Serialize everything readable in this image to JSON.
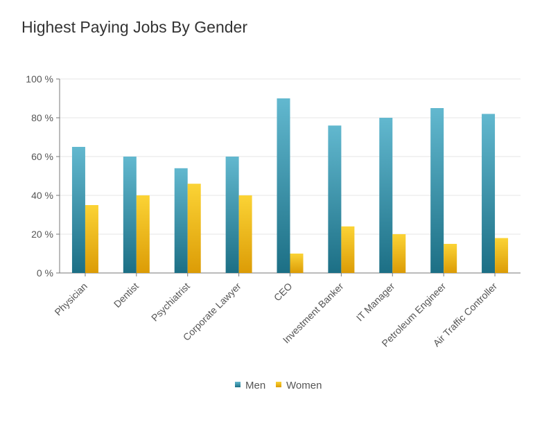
{
  "chart_data": {
    "type": "bar",
    "title": "Highest Paying Jobs By Gender",
    "xlabel": "",
    "ylabel": "",
    "ylim": [
      0,
      100
    ],
    "yticks": [
      0,
      20,
      40,
      60,
      80,
      100
    ],
    "ytick_labels": [
      "0 %",
      "20 %",
      "40 %",
      "60 %",
      "80 %",
      "100 %"
    ],
    "grid": true,
    "legend_position": "bottom",
    "categories": [
      "Physician",
      "Dentist",
      "Psychiatrist",
      "Corporate Lawyer",
      "CEO",
      "Investment Banker",
      "IT Manager",
      "Petroleum Engineer",
      "Air Traffic Controller"
    ],
    "series": [
      {
        "name": "Men",
        "values": [
          65,
          60,
          54,
          60,
          90,
          76,
          80,
          85,
          82
        ],
        "color_top": "#62b8cf",
        "color_bottom": "#1c6f85"
      },
      {
        "name": "Women",
        "values": [
          35,
          40,
          46,
          40,
          10,
          24,
          20,
          15,
          18
        ],
        "color_top": "#fbd335",
        "color_bottom": "#dc9c06"
      }
    ]
  }
}
